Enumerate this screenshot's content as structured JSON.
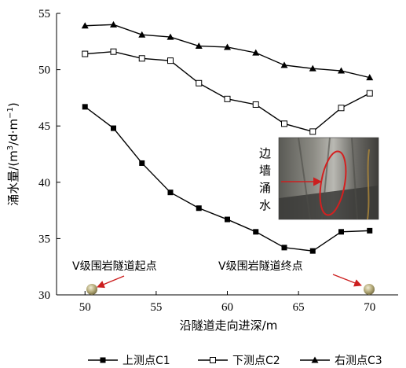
{
  "chart_data": {
    "type": "line",
    "x": [
      50,
      52,
      54,
      56,
      58,
      60,
      62,
      64,
      66,
      68,
      70
    ],
    "xlim": [
      48,
      72
    ],
    "ylim": [
      30,
      55
    ],
    "xticks": [
      50,
      55,
      60,
      65,
      70
    ],
    "yticks": [
      30,
      35,
      40,
      45,
      50,
      55
    ],
    "xlabel": "沿隧道走向进深/m",
    "ylabel": "涌水量/(m³/d·m⁻¹)",
    "ylabel_parts": {
      "a": "涌水量/(m",
      "sup1": "3",
      "b": "/d·m",
      "sup2": "−1",
      "c": ")"
    },
    "series": [
      {
        "name": "上测点C1",
        "marker": "filled-square",
        "values": [
          46.7,
          44.8,
          41.7,
          39.1,
          37.7,
          36.7,
          35.6,
          34.2,
          33.9,
          35.6,
          35.7
        ]
      },
      {
        "name": "下测点C2",
        "marker": "open-square",
        "values": [
          51.4,
          51.6,
          51.0,
          50.8,
          48.8,
          47.4,
          46.9,
          45.2,
          44.5,
          46.6,
          47.9
        ]
      },
      {
        "name": "右测点C3",
        "marker": "filled-triangle",
        "values": [
          53.9,
          54.0,
          53.1,
          52.9,
          52.1,
          52.0,
          51.5,
          50.4,
          50.1,
          49.9,
          49.3
        ]
      }
    ],
    "legend_position": "bottom",
    "annotations": [
      {
        "text": "V级围岩隧道起点",
        "at_x": 50
      },
      {
        "text": "V级围岩隧道终点",
        "at_x": 70
      }
    ],
    "inset": {
      "label_chars": [
        "边",
        "墙",
        "涌",
        "水"
      ]
    },
    "grid": false
  },
  "colors": {
    "line": "#000000",
    "arrow": "#cc1f1f",
    "ball": "#a39a6b",
    "inset_ellipse": "#d42020"
  }
}
